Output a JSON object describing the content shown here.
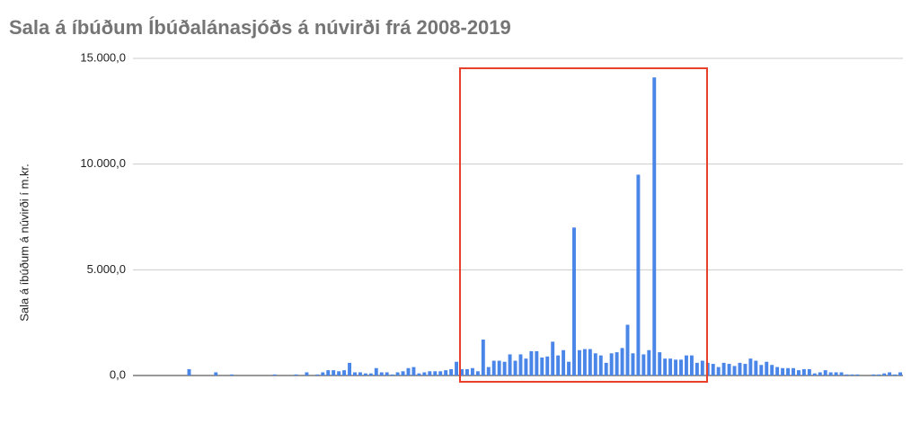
{
  "chart_data": {
    "type": "bar",
    "title": "Sala á íbúðum Íbúðalánasjóðs á núvirði frá 2008-2019",
    "y_label": "Sala á íbúðum á núvirði í m.kr.",
    "color": "#4a86e8",
    "grid": true,
    "ylim": [
      0,
      15000
    ],
    "yticks": [
      {
        "value": 0,
        "label": "0,0"
      },
      {
        "value": 5000,
        "label": "5.000,0"
      },
      {
        "value": 10000,
        "label": "10.000,0"
      },
      {
        "value": 15000,
        "label": "15.000,0"
      }
    ],
    "categories": [
      null,
      null,
      null,
      null,
      null,
      null,
      null,
      null,
      null,
      null,
      null,
      null,
      null,
      null,
      null,
      null,
      null,
      null,
      null,
      null,
      null,
      null,
      null,
      null,
      null,
      null,
      null,
      null,
      null,
      null,
      null,
      null,
      null,
      null,
      null,
      null,
      null,
      null,
      null,
      null,
      null,
      null,
      null,
      null,
      null,
      null,
      null,
      null,
      null,
      null,
      null,
      null,
      null,
      null,
      null,
      null,
      null,
      null,
      null,
      null,
      null,
      null,
      null,
      null,
      null,
      null,
      null,
      null,
      null,
      null,
      null,
      null,
      null,
      null,
      null,
      null,
      null,
      null,
      null,
      null,
      null,
      null,
      null,
      null,
      null,
      null,
      null,
      null,
      null,
      null,
      null,
      null,
      null,
      null,
      null,
      null,
      null,
      null,
      null,
      null,
      null,
      null,
      null,
      null,
      null,
      null,
      null,
      null,
      null,
      null,
      null,
      null,
      null,
      null,
      null,
      null,
      null,
      null,
      null,
      null,
      null,
      null,
      null,
      null,
      null,
      null,
      null,
      null,
      null,
      null,
      null,
      null,
      null,
      null,
      null,
      null,
      null,
      null,
      null,
      null,
      null,
      null,
      null,
      null
    ],
    "values": [
      0,
      0,
      0,
      0,
      0,
      0,
      0,
      0,
      0,
      0,
      300,
      0,
      0,
      0,
      0,
      150,
      0,
      0,
      50,
      0,
      0,
      0,
      0,
      0,
      0,
      0,
      50,
      0,
      0,
      0,
      50,
      0,
      150,
      0,
      50,
      150,
      250,
      250,
      200,
      250,
      600,
      150,
      150,
      100,
      100,
      350,
      150,
      150,
      50,
      150,
      200,
      350,
      400,
      100,
      150,
      200,
      200,
      200,
      250,
      300,
      650,
      300,
      300,
      350,
      200,
      1700,
      400,
      700,
      700,
      650,
      1000,
      700,
      1000,
      800,
      1150,
      1150,
      850,
      900,
      1600,
      950,
      1200,
      650,
      7000,
      1200,
      1250,
      1250,
      1050,
      950,
      600,
      1050,
      1100,
      1300,
      2400,
      1050,
      9500,
      1000,
      1200,
      14100,
      1100,
      800,
      800,
      750,
      750,
      950,
      950,
      600,
      700,
      600,
      550,
      400,
      600,
      550,
      450,
      600,
      550,
      800,
      700,
      500,
      650,
      500,
      400,
      350,
      350,
      350,
      250,
      300,
      300,
      100,
      150,
      250,
      150,
      150,
      150,
      50,
      50,
      50,
      0,
      0,
      50,
      50,
      100,
      150,
      50,
      150
    ]
  }
}
